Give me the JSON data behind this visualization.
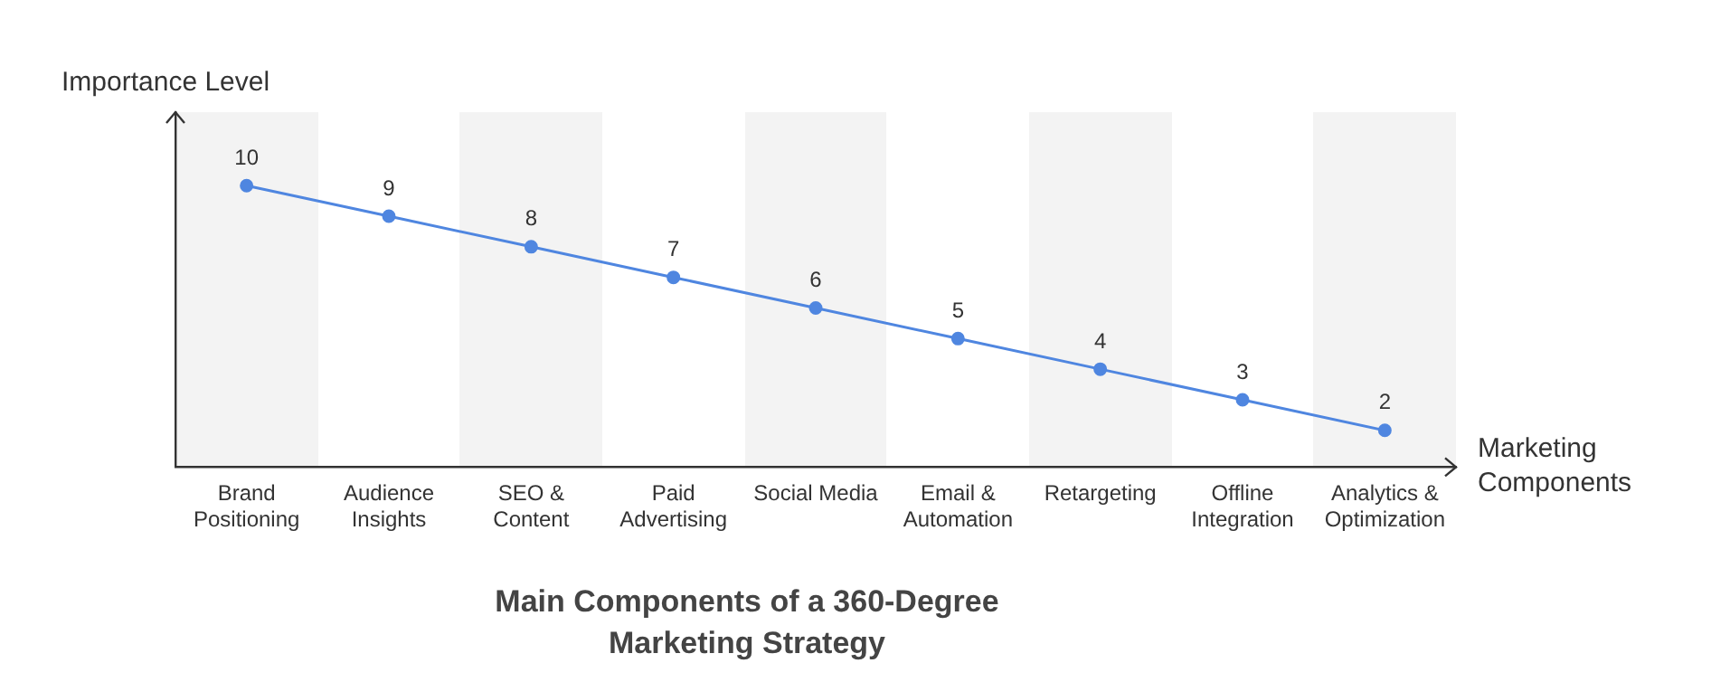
{
  "chart_data": {
    "type": "line",
    "title": "Main Components of a 360-Degree Marketing Strategy",
    "xlabel": "Marketing Components",
    "ylabel": "Importance Level",
    "categories": [
      "Brand Positioning",
      "Audience Insights",
      "SEO & Content",
      "Paid Advertising",
      "Social Media",
      "Email & Automation",
      "Retargeting",
      "Offline Integration",
      "Analytics & Optimization"
    ],
    "series": [
      {
        "color": "#4f86e0",
        "values": [
          10,
          9,
          8,
          7,
          6,
          5,
          4,
          3,
          2
        ]
      }
    ],
    "ylim": [
      0.8,
      12.4
    ],
    "data_labels": true,
    "tick_labels": "x",
    "grid": false,
    "legend": false,
    "marker": "circle",
    "line_style": "solid"
  }
}
